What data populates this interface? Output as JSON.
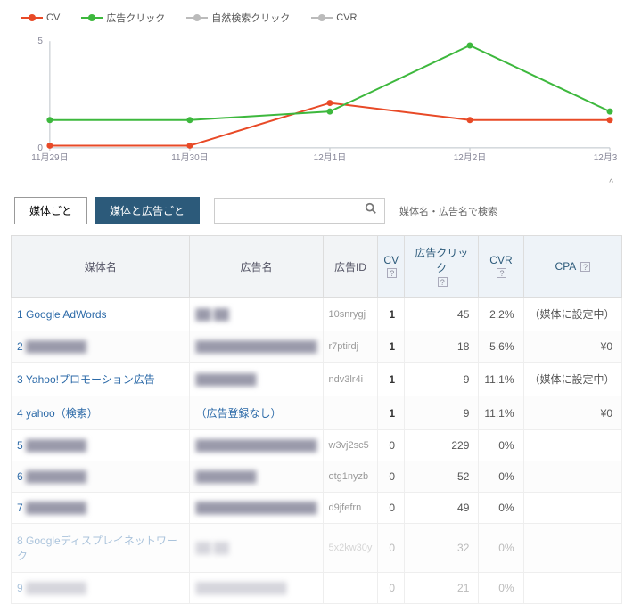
{
  "legend": [
    {
      "label": "CV",
      "color": "#e84a27"
    },
    {
      "label": "広告クリック",
      "color": "#3db83d"
    },
    {
      "label": "自然検索クリック",
      "color": "#bbbbbb"
    },
    {
      "label": "CVR",
      "color": "#bbbbbb"
    }
  ],
  "chart": {
    "type": "line",
    "xlabels": [
      "11月29日",
      "11月30日",
      "12月1日",
      "12月2日",
      "12月3日"
    ],
    "ylim": [
      0,
      5
    ],
    "yticks": [
      0,
      5
    ],
    "series": {
      "cv": {
        "color": "#e84a27",
        "width": 2,
        "marker": "circle",
        "values": [
          0.1,
          0.1,
          2.1,
          1.3,
          1.3
        ]
      },
      "adclick": {
        "color": "#3db83d",
        "width": 2,
        "marker": "circle",
        "values": [
          1.3,
          1.3,
          1.7,
          4.8,
          1.7
        ]
      }
    },
    "axis_color": "#bcc3c9",
    "label_color": "#889",
    "label_fontsize": 10,
    "background": "#ffffff"
  },
  "controls": {
    "tab1": "媒体ごと",
    "tab2": "媒体と広告ごと",
    "active_tab": 2,
    "search_placeholder": "",
    "search_hint": "媒体名・広告名で検索"
  },
  "table": {
    "columns": {
      "c1": "媒体名",
      "c2": "広告名",
      "c3": "広告ID",
      "c4": "CV",
      "c5": "広告クリック",
      "c6": "CVR",
      "c7": "CPA"
    },
    "rows": [
      {
        "n": "1",
        "media": "Google AdWords",
        "ad": "██ ██",
        "id": "10snrygj",
        "cv": "1",
        "click": "45",
        "cvr": "2.2%",
        "cpa": "（媒体に設定中）",
        "blur": true
      },
      {
        "n": "2",
        "media": "████████",
        "ad": "████████████████",
        "id": "r7ptirdj",
        "cv": "1",
        "click": "18",
        "cvr": "5.6%",
        "cpa": "¥0",
        "blur_media": true,
        "blur": true
      },
      {
        "n": "3",
        "media": "Yahoo!プロモーション広告",
        "ad": "████████",
        "id": "ndv3lr4i",
        "cv": "1",
        "click": "9",
        "cvr": "11.1%",
        "cpa": "（媒体に設定中）",
        "blur": true
      },
      {
        "n": "4",
        "media": "yahoo（検索）",
        "ad": "（広告登録なし）",
        "id": "",
        "cv": "1",
        "click": "9",
        "cvr": "11.1%",
        "cpa": "¥0"
      },
      {
        "n": "5",
        "media": "████████",
        "ad": "████████████████",
        "id": "w3vj2sc5",
        "cv": "0",
        "click": "229",
        "cvr": "0%",
        "cpa": "",
        "blur_media": true,
        "blur": true
      },
      {
        "n": "6",
        "media": "████████",
        "ad": "████████",
        "id": "otg1nyzb",
        "cv": "0",
        "click": "52",
        "cvr": "0%",
        "cpa": "",
        "blur_media": true,
        "blur": true
      },
      {
        "n": "7",
        "media": "████████",
        "ad": "████████████████",
        "id": "d9jfefrn",
        "cv": "0",
        "click": "49",
        "cvr": "0%",
        "cpa": "",
        "blur_media": true,
        "blur": true
      },
      {
        "n": "8",
        "media": "Googleディスプレイネットワーク",
        "ad": "██ ██",
        "id": "5x2kw30y",
        "cv": "0",
        "click": "32",
        "cvr": "0%",
        "cpa": "",
        "blur": true,
        "faded": true
      },
      {
        "n": "9",
        "media": "████████",
        "ad": "████████████",
        "id": "",
        "cv": "0",
        "click": "21",
        "cvr": "0%",
        "cpa": "",
        "blur_media": true,
        "blur": true,
        "faded": true
      }
    ]
  }
}
